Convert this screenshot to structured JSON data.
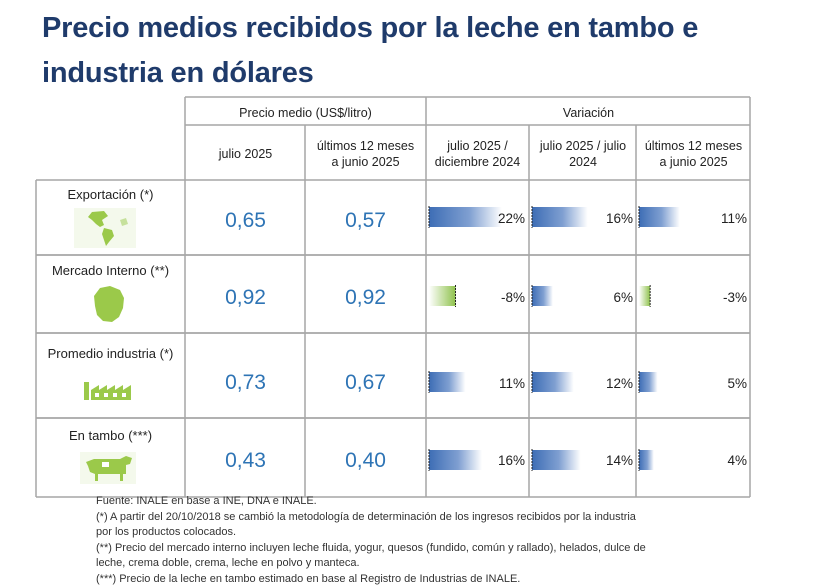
{
  "title_line1": "Precio medios recibidos por la leche en tambo e",
  "title_line2": "industria en dólares",
  "chart_data": {
    "type": "table",
    "header": {
      "price_group": "Precio medio (US$/litro)",
      "variation_group": "Variación",
      "columns": [
        [
          "julio 2025"
        ],
        [
          "últimos 12 meses",
          "a junio 2025"
        ],
        [
          "julio 2025 /",
          "diciembre 2024"
        ],
        [
          "julio 2025 / julio",
          "2024"
        ],
        [
          "últimos 12 meses",
          "a junio 2025"
        ]
      ]
    },
    "rows": [
      {
        "label": "Exportación (*)",
        "icon": "globe-americas-icon",
        "price_jul": "0,65",
        "price_12m": "0,57",
        "var_values": [
          22,
          16,
          11
        ],
        "var_labels": [
          "22%",
          "16%",
          "11%"
        ]
      },
      {
        "label": "Mercado Interno (**)",
        "icon": "uruguay-map-icon",
        "price_jul": "0,92",
        "price_12m": "0,92",
        "var_values": [
          -8,
          6,
          -3
        ],
        "var_labels": [
          "-8%",
          "6%",
          "-3%"
        ]
      },
      {
        "label": "Promedio industria (*)",
        "icon": "factory-icon",
        "price_jul": "0,73",
        "price_12m": "0,67",
        "var_values": [
          11,
          12,
          5
        ],
        "var_labels": [
          "11%",
          "12%",
          "5%"
        ]
      },
      {
        "label": "En tambo (***)",
        "icon": "cow-icon",
        "price_jul": "0,43",
        "price_12m": "0,40",
        "var_values": [
          16,
          14,
          4
        ],
        "var_labels": [
          "16%",
          "14%",
          "4%"
        ]
      }
    ],
    "bar_colors": {
      "positive": "#4a78bc",
      "negative": "#9ccc5a"
    },
    "icon_color": "#9bc94a"
  },
  "source_lines": [
    "Fuente: INALE en base a INE, DNA e INALE.",
    "(*) A partir del 20/10/2018 se cambió la metodología de determinación de los ingresos recibidos por la industria",
    "por los productos colocados.",
    "(**) Precio del mercado interno incluyen leche fluida, yogur, quesos (fundido, común y rallado), helados, dulce de",
    "leche, crema doble, crema, leche en polvo y manteca.",
    "(***) Precio de la leche en tambo estimado en base al Registro de Industrias de INALE."
  ]
}
